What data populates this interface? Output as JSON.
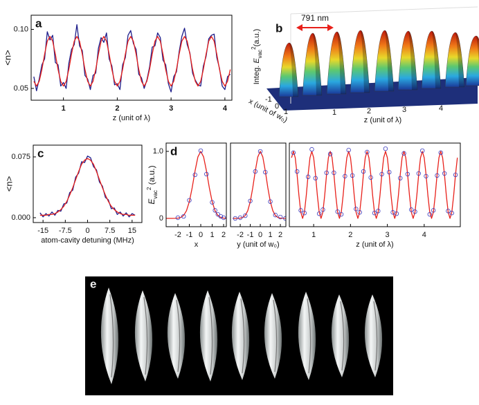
{
  "chart_data": [
    {
      "type": "line",
      "label": "a",
      "ylabel": "<n>",
      "xlabel": "z (unit of λ)",
      "xlim": [
        0.4,
        4.13
      ],
      "ylim": [
        0.04,
        0.112
      ],
      "xticks": [
        1,
        2,
        3,
        4
      ],
      "yticks": [
        0.05,
        {
          "value": 0.1,
          "label": "0.10"
        }
      ],
      "x": [
        0.45,
        0.5,
        0.55,
        0.6,
        0.65,
        0.7,
        0.75,
        0.8,
        0.85,
        0.9,
        0.95,
        1,
        1.05,
        1.1,
        1.15,
        1.2,
        1.25,
        1.3,
        1.35,
        1.4,
        1.45,
        1.5,
        1.55,
        1.6,
        1.65,
        1.7,
        1.75,
        1.8,
        1.85,
        1.9,
        1.95,
        2,
        2.05,
        2.1,
        2.15,
        2.2,
        2.25,
        2.3,
        2.35,
        2.4,
        2.45,
        2.5,
        2.55,
        2.6,
        2.65,
        2.7,
        2.75,
        2.8,
        2.85,
        2.9,
        2.95,
        3,
        3.05,
        3.1,
        3.15,
        3.2,
        3.25,
        3.3,
        3.35,
        3.4,
        3.45,
        3.5,
        3.55,
        3.6,
        3.65,
        3.7,
        3.75,
        3.8,
        3.85,
        3.9,
        3.95,
        4,
        4.05,
        4.1
      ],
      "series": [
        {
          "color": "#1c1c8a",
          "values": [
            0.06,
            0.048,
            0.058,
            0.07,
            0.075,
            0.098,
            0.091,
            0.095,
            0.072,
            0.07,
            0.052,
            0.055,
            0.05,
            0.071,
            0.083,
            0.087,
            0.104,
            0.086,
            0.082,
            0.061,
            0.058,
            0.049,
            0.061,
            0.063,
            0.084,
            0.093,
            0.089,
            0.097,
            0.075,
            0.069,
            0.053,
            0.054,
            0.049,
            0.07,
            0.076,
            0.095,
            0.099,
            0.088,
            0.083,
            0.062,
            0.059,
            0.05,
            0.057,
            0.068,
            0.085,
            0.086,
            0.097,
            0.093,
            0.074,
            0.07,
            0.054,
            0.047,
            0.06,
            0.064,
            0.081,
            0.094,
            0.101,
            0.087,
            0.08,
            0.063,
            0.057,
            0.053,
            0.052,
            0.069,
            0.077,
            0.092,
            0.095,
            0.096,
            0.076,
            0.067,
            0.052,
            0.049,
            0.06,
            0.062
          ]
        },
        {
          "color": "#e8201a",
          "values": [
            0.056,
            0.052,
            0.056,
            0.066,
            0.079,
            0.09,
            0.094,
            0.09,
            0.079,
            0.066,
            0.056,
            0.052,
            0.056,
            0.066,
            0.079,
            0.09,
            0.094,
            0.09,
            0.079,
            0.066,
            0.056,
            0.052,
            0.056,
            0.066,
            0.079,
            0.09,
            0.094,
            0.09,
            0.079,
            0.066,
            0.056,
            0.052,
            0.056,
            0.066,
            0.079,
            0.09,
            0.094,
            0.09,
            0.079,
            0.066,
            0.056,
            0.052,
            0.056,
            0.066,
            0.079,
            0.09,
            0.094,
            0.09,
            0.079,
            0.066,
            0.056,
            0.052,
            0.056,
            0.066,
            0.079,
            0.09,
            0.094,
            0.09,
            0.079,
            0.066,
            0.056,
            0.052,
            0.056,
            0.066,
            0.079,
            0.09,
            0.094,
            0.09,
            0.079,
            0.066,
            0.056,
            0.052,
            0.056,
            0.066
          ]
        }
      ]
    },
    {
      "type": "line",
      "label": "c",
      "ylabel": "<n>",
      "xlabel": "atom-cavity detuning (MHz)",
      "xlim": [
        -18.3,
        18.3
      ],
      "ylim": [
        -0.006,
        0.0895
      ],
      "xticks": [
        -15,
        -7.5,
        0,
        7.5,
        15
      ],
      "yticks": [
        {
          "value": 0,
          "label": "0.000"
        },
        0.075
      ],
      "x": [
        -16,
        -15,
        -14,
        -13,
        -12,
        -11,
        -10,
        -9,
        -8,
        -7,
        -6,
        -5,
        -4,
        -3,
        -2,
        -1,
        0,
        1,
        2,
        3,
        4,
        5,
        6,
        7,
        8,
        9,
        10,
        11,
        12,
        13,
        14,
        15,
        16
      ],
      "series": [
        {
          "color": "#1c1c8a",
          "values": [
            0.006,
            0.001,
            0.005,
            0.002,
            0.007,
            0.003,
            0.009,
            0.008,
            0.017,
            0.018,
            0.031,
            0.034,
            0.05,
            0.055,
            0.069,
            0.068,
            0.076,
            0.074,
            0.063,
            0.059,
            0.044,
            0.039,
            0.025,
            0.022,
            0.011,
            0.012,
            0.004,
            0.007,
            0.002,
            0.006,
            0.001,
            0.005,
            0.003
          ]
        },
        {
          "color": "#e8201a",
          "values": [
            0.003,
            0.003,
            0.003,
            0.004,
            0.004,
            0.005,
            0.007,
            0.01,
            0.014,
            0.02,
            0.028,
            0.037,
            0.047,
            0.057,
            0.066,
            0.071,
            0.073,
            0.071,
            0.066,
            0.057,
            0.047,
            0.037,
            0.028,
            0.02,
            0.014,
            0.01,
            0.007,
            0.005,
            0.004,
            0.004,
            0.003,
            0.003,
            0.003
          ]
        }
      ]
    },
    {
      "type": "line",
      "label": "d",
      "ylabel": {
        "symbol": "E",
        "subscript": "vac",
        "superscript": "2",
        "unit": "(a.u.)"
      },
      "xlabel": "x",
      "xlim": [
        -3.03,
        2.24
      ],
      "ylim": [
        -0.124,
        1.124
      ],
      "xticks": [
        -2,
        -1,
        0,
        1,
        2
      ],
      "yticks": [
        0,
        {
          "value": 1,
          "label": "1.0"
        }
      ],
      "x": [
        -3,
        -2.75,
        -2.5,
        -2.25,
        -2,
        -1.75,
        -1.5,
        -1.25,
        -1,
        -0.75,
        -0.5,
        -0.25,
        0,
        0.25,
        0.5,
        0.75,
        1,
        1.25,
        1.5,
        1.75,
        2,
        2.25
      ],
      "series": [
        {
          "color": "#e8201a",
          "values": [
            0,
            0,
            0,
            0.001,
            0.004,
            0.014,
            0.044,
            0.114,
            0.249,
            0.458,
            0.707,
            0.917,
            1,
            0.917,
            0.707,
            0.458,
            0.249,
            0.114,
            0.044,
            0.014,
            0.004,
            0.001
          ]
        },
        {
          "color": "#3b3bbd",
          "marker": "circle",
          "x": [
            -2,
            -1.5,
            -1,
            -0.5,
            0,
            0.5,
            1,
            1.25,
            1.5,
            1.75,
            2
          ],
          "values": [
            0.01,
            0.03,
            0.27,
            0.65,
            1.01,
            0.66,
            0.24,
            0.12,
            0.06,
            0.03,
            0.01
          ]
        }
      ]
    },
    {
      "type": "line",
      "xlabel": "y (unit of w₀)",
      "xlim": [
        -2.97,
        2.55
      ],
      "ylim": [
        -0.124,
        1.124
      ],
      "xticks": [
        -2,
        -1,
        0,
        1,
        2
      ],
      "x": [
        -2.75,
        -2.5,
        -2.25,
        -2,
        -1.75,
        -1.5,
        -1.25,
        -1,
        -0.75,
        -0.5,
        -0.25,
        0,
        0.25,
        0.5,
        0.75,
        1,
        1.25,
        1.5,
        1.75,
        2,
        2.25,
        2.5
      ],
      "series": [
        {
          "color": "#e8201a",
          "values": [
            0,
            0,
            0.001,
            0.004,
            0.014,
            0.044,
            0.114,
            0.249,
            0.458,
            0.707,
            0.917,
            1,
            0.917,
            0.707,
            0.458,
            0.249,
            0.114,
            0.044,
            0.014,
            0.004,
            0.001,
            0
          ]
        },
        {
          "color": "#3b3bbd",
          "marker": "circle",
          "x": [
            -2.5,
            -2,
            -1.5,
            -1,
            -0.5,
            0,
            0.5,
            1,
            1.5,
            2,
            2.5
          ],
          "values": [
            0,
            0.01,
            0.04,
            0.26,
            0.7,
            1.0,
            0.69,
            0.25,
            0.05,
            0.02,
            0
          ]
        }
      ]
    },
    {
      "type": "line",
      "xlabel": "z (unit of λ)",
      "xlim": [
        0.34,
        4.98
      ],
      "ylim": [
        -0.124,
        1.124
      ],
      "xticks": [
        1,
        2,
        3,
        4
      ],
      "x": [
        0.4,
        0.45,
        0.5,
        0.55,
        0.6,
        0.65,
        0.7,
        0.75,
        0.8,
        0.85,
        0.9,
        0.95,
        1,
        1.05,
        1.1,
        1.15,
        1.2,
        1.25,
        1.3,
        1.35,
        1.4,
        1.45,
        1.5,
        1.55,
        1.6,
        1.65,
        1.7,
        1.75,
        1.8,
        1.85,
        1.9,
        1.95,
        2,
        2.05,
        2.1,
        2.15,
        2.2,
        2.25,
        2.3,
        2.35,
        2.4,
        2.45,
        2.5,
        2.55,
        2.6,
        2.65,
        2.7,
        2.75,
        2.8,
        2.85,
        2.9,
        2.95,
        3,
        3.05,
        3.1,
        3.15,
        3.2,
        3.25,
        3.3,
        3.35,
        3.4,
        3.45,
        3.5,
        3.55,
        3.6,
        3.65,
        3.7,
        3.75,
        3.8,
        3.85,
        3.9,
        3.95,
        4,
        4.05,
        4.1,
        4.15,
        4.2,
        4.25,
        4.3,
        4.35,
        4.4,
        4.45,
        4.5,
        4.55,
        4.6,
        4.65,
        4.7,
        4.75,
        4.8,
        4.85,
        4.9
      ],
      "series": [
        {
          "color": "#e8201a",
          "values": [
            0.905,
            1,
            0.905,
            0.655,
            0.345,
            0.095,
            0,
            0.095,
            0.345,
            0.655,
            0.905,
            1,
            0.905,
            0.655,
            0.345,
            0.095,
            0,
            0.095,
            0.345,
            0.655,
            0.905,
            1,
            0.905,
            0.655,
            0.345,
            0.095,
            0,
            0.095,
            0.345,
            0.655,
            0.905,
            1,
            0.905,
            0.655,
            0.345,
            0.095,
            0,
            0.095,
            0.345,
            0.655,
            0.905,
            1,
            0.905,
            0.655,
            0.345,
            0.095,
            0,
            0.095,
            0.345,
            0.655,
            0.905,
            1,
            0.905,
            0.655,
            0.345,
            0.095,
            0,
            0.095,
            0.345,
            0.655,
            0.905,
            1,
            0.905,
            0.655,
            0.345,
            0.095,
            0,
            0.095,
            0.345,
            0.655,
            0.905,
            1,
            0.905,
            0.655,
            0.345,
            0.095,
            0,
            0.095,
            0.345,
            0.655,
            0.905,
            1,
            0.905,
            0.655,
            0.345,
            0.095,
            0,
            0.095,
            0.345,
            0.655,
            0.905
          ]
        },
        {
          "color": "#3b3bbd",
          "marker": "circle",
          "x": [
            0.45,
            0.55,
            0.65,
            0.75,
            0.85,
            0.95,
            1.05,
            1.15,
            1.25,
            1.35,
            1.45,
            1.55,
            1.65,
            1.75,
            1.85,
            1.95,
            2.05,
            2.15,
            2.25,
            2.35,
            2.45,
            2.55,
            2.65,
            2.75,
            2.85,
            2.95,
            3.05,
            3.15,
            3.25,
            3.35,
            3.45,
            3.55,
            3.65,
            3.75,
            3.85,
            3.95,
            4.05,
            4.15,
            4.25,
            4.35,
            4.45,
            4.55,
            4.65,
            4.75,
            4.85
          ],
          "values": [
            0.98,
            0.7,
            0.12,
            0.08,
            0.62,
            1.03,
            0.6,
            0.07,
            0.13,
            0.68,
            0.96,
            0.68,
            0.1,
            0.06,
            0.63,
            1.02,
            0.64,
            0.14,
            0.09,
            0.7,
            0.99,
            0.61,
            0.08,
            0.11,
            0.66,
            1.04,
            0.69,
            0.09,
            0.07,
            0.6,
            0.97,
            0.66,
            0.13,
            0.1,
            0.67,
            1.01,
            0.63,
            0.06,
            0.12,
            0.64,
            0.98,
            0.67,
            0.11,
            0.08,
            0.65
          ]
        }
      ]
    }
  ],
  "panel_b": {
    "label": "b",
    "annotation": "791 nm",
    "vertical_label": {
      "prefix": "Integ.",
      "symbol": "E",
      "subscript": "vac",
      "superscript": "2",
      "unit": "(a.u.)"
    },
    "x_label": "x (unit of w₀)",
    "z_label": "z (unit of λ)",
    "x_ticks": [
      -1,
      0,
      1
    ],
    "z_ticks": [
      1,
      2,
      3,
      4
    ]
  },
  "panel_e": {
    "label": "e"
  }
}
